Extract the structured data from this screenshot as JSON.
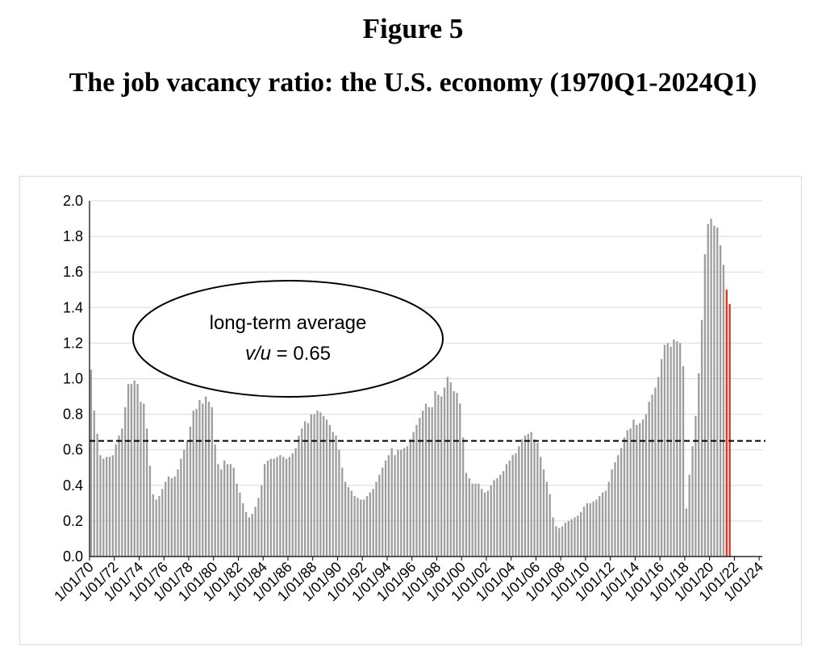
{
  "figure_label": "Figure 5",
  "title": "The job vacancy ratio: the U.S. economy (1970Q1-2024Q1)",
  "chart_data": {
    "type": "bar",
    "title": "The job vacancy ratio: the U.S. economy (1970Q1-2024Q1)",
    "xlabel": "",
    "ylabel": "",
    "ylim": [
      0,
      2.0
    ],
    "yticks": [
      "0.0",
      "0.2",
      "0.4",
      "0.6",
      "0.8",
      "1.0",
      "1.2",
      "1.4",
      "1.6",
      "1.8",
      "2.0"
    ],
    "xticks": [
      "1/01/70",
      "1/01/72",
      "1/01/74",
      "1/01/76",
      "1/01/78",
      "1/01/80",
      "1/01/82",
      "1/01/84",
      "1/01/86",
      "1/01/88",
      "1/01/90",
      "1/01/92",
      "1/01/94",
      "1/01/96",
      "1/01/98",
      "1/01/00",
      "1/01/02",
      "1/01/04",
      "1/01/06",
      "1/01/08",
      "1/01/10",
      "1/01/12",
      "1/01/14",
      "1/01/16",
      "1/01/18",
      "1/01/20",
      "1/01/22",
      "1/01/24"
    ],
    "grid": "horizontal",
    "quarters_start": "1970Q1",
    "colors": {
      "default": "#9e9e9e",
      "highlight": "#e0321e",
      "reference": "#000000"
    },
    "highlight_from": "2021Q2",
    "reference_line": {
      "value": 0.65,
      "style": "dashed"
    },
    "annotation": {
      "line1": "long-term average",
      "line2_var": "v/u",
      "line2_rest": " = 0.65"
    },
    "values": [
      1.05,
      0.82,
      0.69,
      0.57,
      0.55,
      0.56,
      0.56,
      0.57,
      0.63,
      0.68,
      0.72,
      0.84,
      0.97,
      0.97,
      0.99,
      0.97,
      0.87,
      0.86,
      0.72,
      0.51,
      0.35,
      0.32,
      0.34,
      0.38,
      0.42,
      0.45,
      0.44,
      0.45,
      0.49,
      0.55,
      0.6,
      0.65,
      0.73,
      0.82,
      0.83,
      0.88,
      0.86,
      0.9,
      0.87,
      0.84,
      0.63,
      0.52,
      0.49,
      0.54,
      0.52,
      0.52,
      0.5,
      0.41,
      0.36,
      0.3,
      0.25,
      0.22,
      0.24,
      0.28,
      0.33,
      0.4,
      0.52,
      0.54,
      0.55,
      0.55,
      0.56,
      0.57,
      0.56,
      0.55,
      0.56,
      0.58,
      0.61,
      0.68,
      0.72,
      0.76,
      0.75,
      0.8,
      0.8,
      0.82,
      0.81,
      0.79,
      0.77,
      0.74,
      0.7,
      0.68,
      0.6,
      0.5,
      0.42,
      0.39,
      0.37,
      0.34,
      0.33,
      0.32,
      0.32,
      0.34,
      0.36,
      0.38,
      0.42,
      0.46,
      0.5,
      0.54,
      0.57,
      0.61,
      0.57,
      0.6,
      0.6,
      0.61,
      0.62,
      0.66,
      0.7,
      0.74,
      0.78,
      0.82,
      0.86,
      0.84,
      0.84,
      0.93,
      0.91,
      0.9,
      0.95,
      1.01,
      0.98,
      0.93,
      0.92,
      0.86,
      0.67,
      0.47,
      0.44,
      0.41,
      0.41,
      0.41,
      0.38,
      0.36,
      0.37,
      0.4,
      0.43,
      0.44,
      0.46,
      0.48,
      0.52,
      0.54,
      0.57,
      0.58,
      0.62,
      0.66,
      0.68,
      0.69,
      0.7,
      0.66,
      0.64,
      0.56,
      0.49,
      0.42,
      0.35,
      0.22,
      0.17,
      0.16,
      0.17,
      0.19,
      0.2,
      0.21,
      0.22,
      0.23,
      0.25,
      0.28,
      0.3,
      0.3,
      0.31,
      0.32,
      0.34,
      0.36,
      0.37,
      0.42,
      0.49,
      0.53,
      0.57,
      0.61,
      0.67,
      0.71,
      0.72,
      0.77,
      0.74,
      0.75,
      0.77,
      0.8,
      0.87,
      0.91,
      0.95,
      1.01,
      1.11,
      1.19,
      1.2,
      1.18,
      1.22,
      1.21,
      1.2,
      1.07,
      0.27,
      0.46,
      0.62,
      0.79,
      1.03,
      1.33,
      1.7,
      1.87,
      1.9,
      1.86,
      1.85,
      1.75,
      1.64,
      1.5,
      1.42
    ]
  }
}
